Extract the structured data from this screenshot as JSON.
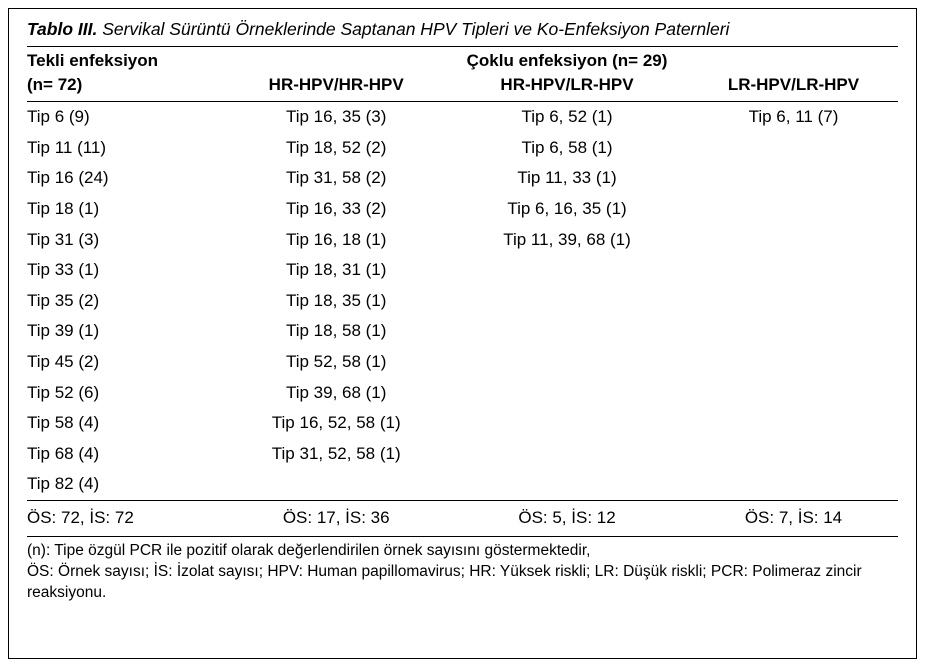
{
  "title": {
    "label": "Tablo III.",
    "text": "Servikal Sürüntü Örneklerinde Saptanan HPV Tipleri ve Ko-Enfeksiyon Paternleri"
  },
  "header": {
    "super_left_1": "Tekli enfeksiyon",
    "super_left_2": "(n= 72)",
    "super_span": "Çoklu enfeksiyon (n= 29)",
    "col1": "HR-HPV/HR-HPV",
    "col2": "HR-HPV/LR-HPV",
    "col3": "LR-HPV/LR-HPV"
  },
  "rows": [
    {
      "c0": "Tip 6 (9)",
      "c1": "Tip 16, 35 (3)",
      "c2": "Tip 6, 52 (1)",
      "c3": "Tip 6, 11 (7)"
    },
    {
      "c0": "Tip 11 (11)",
      "c1": "Tip 18, 52 (2)",
      "c2": "Tip 6, 58 (1)",
      "c3": ""
    },
    {
      "c0": "Tip 16 (24)",
      "c1": "Tip 31, 58 (2)",
      "c2": "Tip 11, 33 (1)",
      "c3": ""
    },
    {
      "c0": "Tip 18 (1)",
      "c1": "Tip 16, 33 (2)",
      "c2": "Tip 6, 16, 35 (1)",
      "c3": ""
    },
    {
      "c0": "Tip 31 (3)",
      "c1": "Tip 16, 18 (1)",
      "c2": "Tip 11, 39, 68 (1)",
      "c3": ""
    },
    {
      "c0": "Tip 33 (1)",
      "c1": "Tip 18, 31 (1)",
      "c2": "",
      "c3": ""
    },
    {
      "c0": "Tip 35 (2)",
      "c1": "Tip 18, 35 (1)",
      "c2": "",
      "c3": ""
    },
    {
      "c0": "Tip 39 (1)",
      "c1": "Tip 18, 58 (1)",
      "c2": "",
      "c3": ""
    },
    {
      "c0": "Tip 45 (2)",
      "c1": "Tip 52, 58 (1)",
      "c2": "",
      "c3": ""
    },
    {
      "c0": "Tip 52 (6)",
      "c1": "Tip 39, 68 (1)",
      "c2": "",
      "c3": ""
    },
    {
      "c0": "Tip 58 (4)",
      "c1": "Tip 16, 52, 58 (1)",
      "c2": "",
      "c3": ""
    },
    {
      "c0": "Tip 68 (4)",
      "c1": "Tip 31, 52, 58 (1)",
      "c2": "",
      "c3": ""
    },
    {
      "c0": "Tip 82 (4)",
      "c1": "",
      "c2": "",
      "c3": ""
    }
  ],
  "totals": {
    "c0": "ÖS: 72, İS: 72",
    "c1": "ÖS: 17, İS: 36",
    "c2": "ÖS: 5, İS: 12",
    "c3": "ÖS: 7, İS: 14"
  },
  "footnotes": {
    "line1": "(n): Tipe özgül PCR ile pozitif olarak değerlendirilen örnek sayısını göstermektedir,",
    "line2": "ÖS: Örnek sayısı; İS: İzolat sayısı; HPV: Human papillomavirus; HR: Yüksek riskli; LR: Düşük riskli; PCR: Polimeraz zincir reaksiyonu."
  }
}
